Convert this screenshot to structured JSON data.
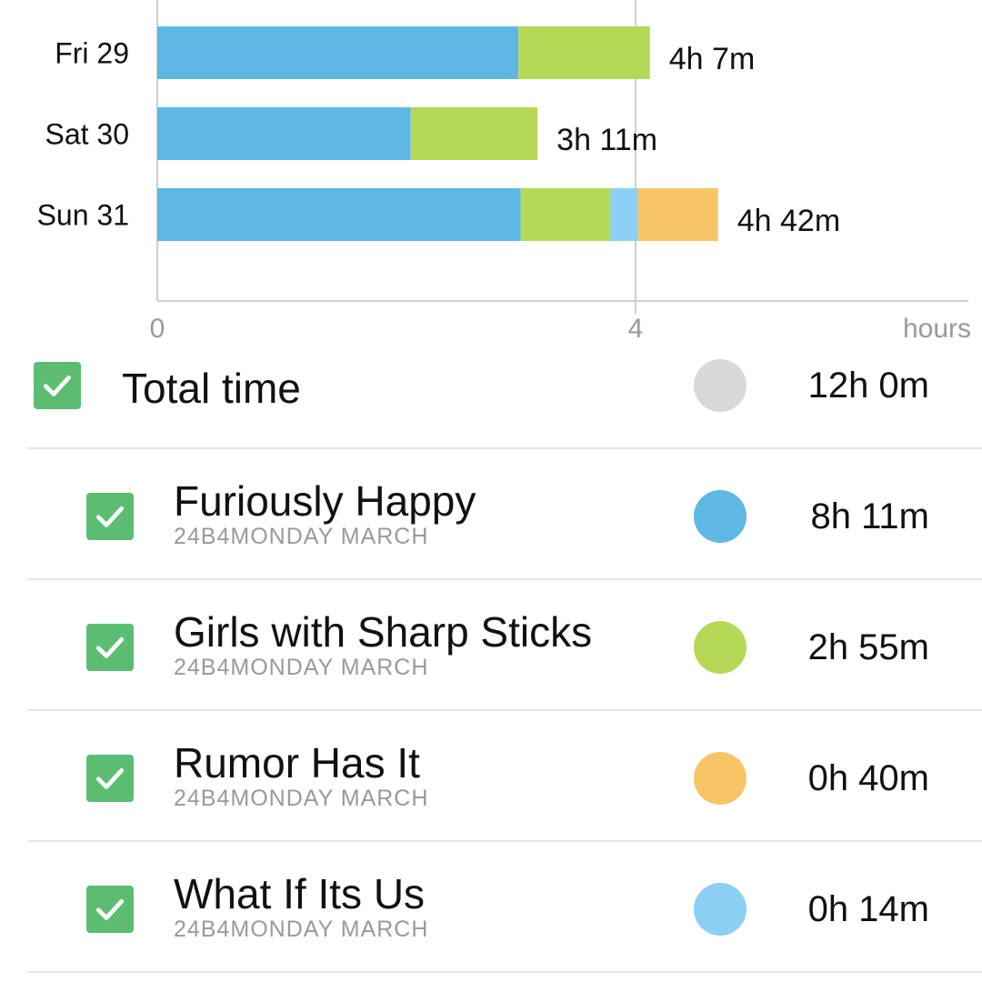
{
  "chart_data": {
    "type": "bar",
    "orientation": "horizontal",
    "stacked": true,
    "categories": [
      "Fri 29",
      "Sat 30",
      "Sun 31"
    ],
    "series": [
      {
        "name": "Furiously Happy",
        "color": "#5eb8e3",
        "values": [
          3.02,
          2.12,
          3.04
        ]
      },
      {
        "name": "Girls with Sharp Sticks",
        "color": "#b5d957",
        "values": [
          1.1,
          1.06,
          0.75
        ]
      },
      {
        "name": "What If Its Us",
        "color": "#8dcff4",
        "values": [
          0,
          0,
          0.23
        ]
      },
      {
        "name": "Rumor Has It",
        "color": "#f7c566",
        "values": [
          0,
          0,
          0.67
        ]
      }
    ],
    "totals": [
      "4h 7m",
      "3h 11m",
      "4h 42m"
    ],
    "x_ticks": [
      "0",
      "4"
    ],
    "xlabel": "hours",
    "xlim": [
      0,
      6.8
    ],
    "grid": true
  },
  "legend": {
    "total": {
      "title": "Total time",
      "time": "12h 0m",
      "color": "#d8d8d8",
      "checked": true
    },
    "items": [
      {
        "title": "Furiously Happy",
        "subtitle": "24B4MONDAY MARCH",
        "time": "8h 11m",
        "color": "#5eb8e3",
        "checked": true,
        "icon": "check-icon"
      },
      {
        "title": "Girls with Sharp Sticks",
        "subtitle": "24B4MONDAY MARCH",
        "time": "2h 55m",
        "color": "#b5d957",
        "checked": true,
        "icon": "check-icon"
      },
      {
        "title": "Rumor Has It",
        "subtitle": "24B4MONDAY MARCH",
        "time": "0h 40m",
        "color": "#f7c566",
        "checked": true,
        "icon": "check-icon"
      },
      {
        "title": "What If Its Us",
        "subtitle": "24B4MONDAY MARCH",
        "time": "0h 14m",
        "color": "#8dcff4",
        "checked": true,
        "icon": "check-icon"
      }
    ]
  }
}
